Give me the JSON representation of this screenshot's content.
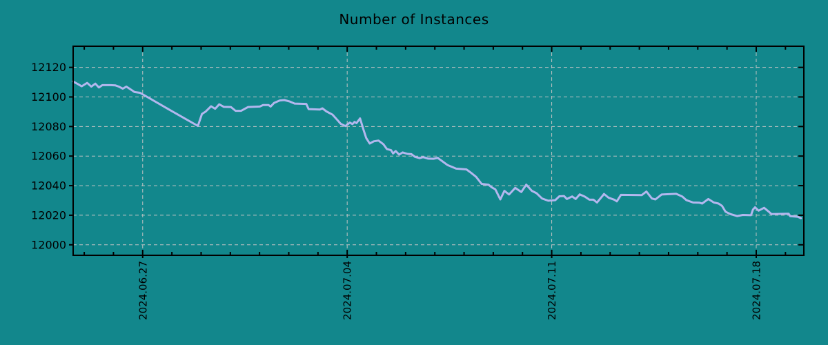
{
  "page": {
    "background_color": "#12878c",
    "text_color": "#000000"
  },
  "chart_data": {
    "type": "line",
    "title": "Number of Instances",
    "xlabel": "",
    "ylabel": "",
    "x_unit": "days relative to 2024-06-27 00:00",
    "xlim": [
      -2.38,
      22.63
    ],
    "ylim": [
      11992.9,
      12134.3
    ],
    "grid": {
      "show": true,
      "color": "#c3c3c3",
      "dash": "5 4"
    },
    "legend_position": "none",
    "axis_color": "#000000",
    "line_color": "#b3b7ee",
    "line_width": 3,
    "yticks": [
      12000,
      12020,
      12040,
      12060,
      12080,
      12100,
      12120
    ],
    "xticks": [
      {
        "day": 0,
        "label": "2024.06.27"
      },
      {
        "day": 7,
        "label": "2024.07.04"
      },
      {
        "day": 14,
        "label": "2024.07.11"
      },
      {
        "day": 21,
        "label": "2024.07.18"
      }
    ],
    "minor_xticks_days": [
      -2,
      -1,
      0,
      1,
      2,
      3,
      4,
      5,
      6,
      7,
      8,
      9,
      10,
      11,
      12,
      13,
      14,
      15,
      16,
      17,
      18,
      19,
      20,
      21,
      22
    ],
    "series": [
      {
        "name": "Number of Instances",
        "points": [
          [
            -2.39,
            12110.5
          ],
          [
            -2.23,
            12108.8
          ],
          [
            -2.09,
            12107.2
          ],
          [
            -1.9,
            12109.5
          ],
          [
            -1.76,
            12107.0
          ],
          [
            -1.62,
            12109.0
          ],
          [
            -1.5,
            12106.4
          ],
          [
            -1.38,
            12108.0
          ],
          [
            -1.1,
            12108.0
          ],
          [
            -0.93,
            12107.8
          ],
          [
            -0.82,
            12107.0
          ],
          [
            -0.68,
            12105.6
          ],
          [
            -0.56,
            12107.0
          ],
          [
            -0.39,
            12104.8
          ],
          [
            -0.28,
            12103.3
          ],
          [
            -0.09,
            12102.8
          ],
          [
            0.9,
            12091.5
          ],
          [
            1.89,
            12080.4
          ],
          [
            2.03,
            12088.5
          ],
          [
            2.15,
            12090.0
          ],
          [
            2.34,
            12093.7
          ],
          [
            2.48,
            12092.0
          ],
          [
            2.62,
            12095.0
          ],
          [
            2.78,
            12093.3
          ],
          [
            3.02,
            12093.2
          ],
          [
            3.18,
            12090.6
          ],
          [
            3.37,
            12090.6
          ],
          [
            3.61,
            12093.2
          ],
          [
            4.01,
            12093.5
          ],
          [
            4.12,
            12094.5
          ],
          [
            4.31,
            12094.5
          ],
          [
            4.38,
            12093.5
          ],
          [
            4.5,
            12096.0
          ],
          [
            4.69,
            12097.6
          ],
          [
            4.85,
            12097.9
          ],
          [
            5.02,
            12097.0
          ],
          [
            5.2,
            12095.5
          ],
          [
            5.6,
            12095.3
          ],
          [
            5.68,
            12091.8
          ],
          [
            6.07,
            12091.5
          ],
          [
            6.15,
            12092.3
          ],
          [
            6.29,
            12090.2
          ],
          [
            6.5,
            12088.0
          ],
          [
            6.66,
            12084.5
          ],
          [
            6.78,
            12081.8
          ],
          [
            6.94,
            12080.3
          ],
          [
            7.09,
            12082.7
          ],
          [
            7.18,
            12081.6
          ],
          [
            7.25,
            12083.1
          ],
          [
            7.32,
            12082.3
          ],
          [
            7.44,
            12085.5
          ],
          [
            7.56,
            12077.7
          ],
          [
            7.65,
            12072.3
          ],
          [
            7.77,
            12068.5
          ],
          [
            7.91,
            12070.0
          ],
          [
            8.07,
            12070.5
          ],
          [
            8.24,
            12068.0
          ],
          [
            8.36,
            12064.7
          ],
          [
            8.5,
            12064.0
          ],
          [
            8.57,
            12061.8
          ],
          [
            8.66,
            12063.4
          ],
          [
            8.78,
            12061.0
          ],
          [
            8.9,
            12062.5
          ],
          [
            9.06,
            12061.5
          ],
          [
            9.2,
            12061.3
          ],
          [
            9.32,
            12059.5
          ],
          [
            9.48,
            12058.6
          ],
          [
            9.6,
            12059.3
          ],
          [
            9.77,
            12058.3
          ],
          [
            9.95,
            12058.2
          ],
          [
            10.1,
            12058.8
          ],
          [
            10.43,
            12054.0
          ],
          [
            10.73,
            12051.5
          ],
          [
            11.08,
            12051.0
          ],
          [
            11.22,
            12049.0
          ],
          [
            11.41,
            12046.0
          ],
          [
            11.6,
            12041.2
          ],
          [
            11.84,
            12040.6
          ],
          [
            11.95,
            12038.8
          ],
          [
            12.07,
            12037.5
          ],
          [
            12.24,
            12030.7
          ],
          [
            12.38,
            12036.5
          ],
          [
            12.54,
            12034.0
          ],
          [
            12.75,
            12038.5
          ],
          [
            12.96,
            12035.7
          ],
          [
            13.13,
            12040.7
          ],
          [
            13.32,
            12036.5
          ],
          [
            13.48,
            12034.9
          ],
          [
            13.67,
            12031.3
          ],
          [
            13.88,
            12029.8
          ],
          [
            14.12,
            12030.2
          ],
          [
            14.26,
            12032.8
          ],
          [
            14.42,
            12033.0
          ],
          [
            14.52,
            12031.0
          ],
          [
            14.7,
            12032.7
          ],
          [
            14.82,
            12031.0
          ],
          [
            14.96,
            12034.1
          ],
          [
            15.13,
            12032.6
          ],
          [
            15.29,
            12030.5
          ],
          [
            15.43,
            12030.5
          ],
          [
            15.55,
            12028.6
          ],
          [
            15.72,
            12032.6
          ],
          [
            15.79,
            12034.4
          ],
          [
            15.95,
            12031.8
          ],
          [
            16.14,
            12030.5
          ],
          [
            16.23,
            12029.4
          ],
          [
            16.37,
            12033.8
          ],
          [
            17.08,
            12033.6
          ],
          [
            17.24,
            12036.0
          ],
          [
            17.43,
            12031.3
          ],
          [
            17.55,
            12030.7
          ],
          [
            17.76,
            12034.0
          ],
          [
            18.26,
            12034.5
          ],
          [
            18.47,
            12032.6
          ],
          [
            18.61,
            12030.2
          ],
          [
            18.84,
            12028.6
          ],
          [
            19.05,
            12028.5
          ],
          [
            19.15,
            12027.9
          ],
          [
            19.36,
            12031.0
          ],
          [
            19.55,
            12028.6
          ],
          [
            19.71,
            12027.9
          ],
          [
            19.83,
            12026.3
          ],
          [
            19.95,
            12022.4
          ],
          [
            20.11,
            12020.8
          ],
          [
            20.35,
            12019.4
          ],
          [
            20.54,
            12020.2
          ],
          [
            20.82,
            12020.0
          ],
          [
            20.89,
            12023.9
          ],
          [
            20.96,
            12025.4
          ],
          [
            21.08,
            12023.1
          ],
          [
            21.27,
            12025.0
          ],
          [
            21.43,
            12022.4
          ],
          [
            21.52,
            12020.8
          ],
          [
            22.11,
            12021.0
          ],
          [
            22.16,
            12019.4
          ],
          [
            22.42,
            12019.0
          ],
          [
            22.53,
            12018.0
          ]
        ]
      }
    ]
  }
}
